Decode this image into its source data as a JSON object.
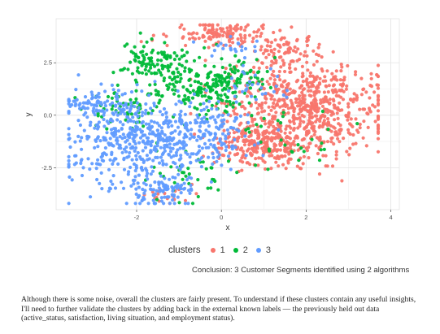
{
  "chart_data": {
    "type": "scatter",
    "xlabel": "x",
    "ylabel": "y",
    "xlim": [
      -3.9,
      4.2
    ],
    "ylim": [
      -4.5,
      4.6
    ],
    "xticks": [
      -2,
      0,
      2,
      4
    ],
    "xtick_labels": [
      "-2",
      "0",
      "2",
      "4"
    ],
    "yticks": [
      -2.5,
      0,
      2.5
    ],
    "ytick_labels": [
      "-2.5",
      "0.0",
      "2.5"
    ],
    "grid": true,
    "legend_position": "bottom",
    "legend_title": "clusters",
    "series": [
      {
        "name": "1",
        "color": "#F8766D",
        "regions": [
          {
            "cx": 2.0,
            "cy": 0.5,
            "sx": 0.9,
            "sy": 1.0,
            "n": 620
          },
          {
            "cx": 1.4,
            "cy": -1.3,
            "sx": 0.8,
            "sy": 0.6,
            "n": 240
          },
          {
            "cx": 0.7,
            "cy": -1.4,
            "sx": 0.4,
            "sy": 0.5,
            "n": 90
          },
          {
            "cx": 1.5,
            "cy": 3.0,
            "sx": 0.3,
            "sy": 0.4,
            "n": 70
          },
          {
            "cx": -0.4,
            "cy": 3.9,
            "sx": 0.45,
            "sy": 0.25,
            "n": 70
          },
          {
            "cx": 0.5,
            "cy": 3.8,
            "sx": 0.45,
            "sy": 0.3,
            "n": 60
          },
          {
            "cx": -1.2,
            "cy": -3.8,
            "sx": 0.4,
            "sy": 0.3,
            "n": 20
          }
        ]
      },
      {
        "name": "2",
        "color": "#00BA38",
        "regions": [
          {
            "cx": -1.6,
            "cy": 2.6,
            "sx": 0.4,
            "sy": 0.5,
            "n": 110
          },
          {
            "cx": -0.5,
            "cy": 1.3,
            "sx": 0.55,
            "sy": 0.6,
            "n": 150
          },
          {
            "cx": 0.3,
            "cy": 1.8,
            "sx": 0.5,
            "sy": 0.5,
            "n": 70
          },
          {
            "cx": -2.1,
            "cy": 0.4,
            "sx": 0.6,
            "sy": 0.5,
            "n": 60
          },
          {
            "cx": -0.9,
            "cy": -2.8,
            "sx": 0.5,
            "sy": 0.6,
            "n": 40
          },
          {
            "cx": 1.5,
            "cy": -1.0,
            "sx": 0.7,
            "sy": 0.8,
            "n": 30
          }
        ]
      },
      {
        "name": "3",
        "color": "#619CFF",
        "regions": [
          {
            "cx": -1.8,
            "cy": -1.2,
            "sx": 0.9,
            "sy": 1.1,
            "n": 520
          },
          {
            "cx": -2.9,
            "cy": 0.6,
            "sx": 0.45,
            "sy": 0.4,
            "n": 90
          },
          {
            "cx": -1.4,
            "cy": -3.7,
            "sx": 0.5,
            "sy": 0.35,
            "n": 80
          },
          {
            "cx": -0.2,
            "cy": -0.7,
            "sx": 0.5,
            "sy": 0.6,
            "n": 90
          },
          {
            "cx": 0.7,
            "cy": 1.4,
            "sx": 0.35,
            "sy": 0.5,
            "n": 30
          },
          {
            "cx": 0.3,
            "cy": 3.2,
            "sx": 0.4,
            "sy": 0.3,
            "n": 20
          }
        ]
      }
    ]
  },
  "legend": {
    "title": "clusters",
    "items": [
      {
        "label": "1",
        "color": "#F8766D"
      },
      {
        "label": "2",
        "color": "#00BA38"
      },
      {
        "label": "3",
        "color": "#619CFF"
      }
    ]
  },
  "caption": "Conclusion: 3 Customer Segments identified using 2 algorithms",
  "paragraph": "Although there is some noise, overall the clusters are fairly present. To understand if these clusters contain any useful insights, I'll need to further validate the clusters by adding back in the external known labels — the previously held out data (active_status, satisfaction, living situation, and employment status)."
}
